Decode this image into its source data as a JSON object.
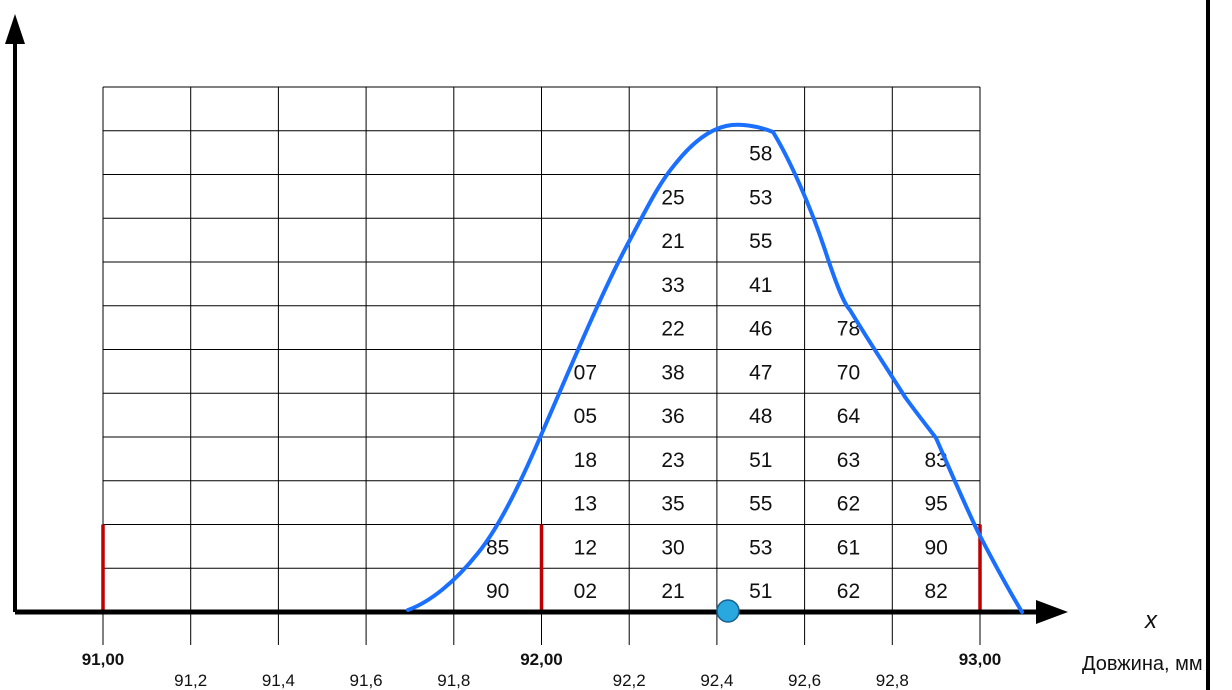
{
  "axis": {
    "x_symbol": "x",
    "caption": "Довжина, мм",
    "major_ticks": [
      "91,00",
      "92,00",
      "93,00"
    ],
    "minor_ticks": [
      "91,2",
      "91,4",
      "91,6",
      "91,8",
      "92,2",
      "92,4",
      "92,6",
      "92,8"
    ]
  },
  "columns": [
    {
      "interval_index": 4,
      "values": [
        "90",
        "85"
      ]
    },
    {
      "interval_index": 5,
      "values": [
        "02",
        "12",
        "13",
        "18",
        "05",
        "07"
      ]
    },
    {
      "interval_index": 6,
      "values": [
        "21",
        "30",
        "35",
        "23",
        "36",
        "38",
        "22",
        "33",
        "21",
        "25"
      ]
    },
    {
      "interval_index": 7,
      "values": [
        "51",
        "53",
        "55",
        "51",
        "48",
        "47",
        "46",
        "41",
        "55",
        "53",
        "58"
      ]
    },
    {
      "interval_index": 8,
      "values": [
        "62",
        "61",
        "62",
        "63",
        "64",
        "70",
        "78"
      ]
    },
    {
      "interval_index": 9,
      "values": [
        "82",
        "90",
        "95",
        "83"
      ]
    }
  ],
  "grid": {
    "columns": 10,
    "rows": 12
  },
  "colors": {
    "curve": "#1a6fff",
    "limit_lines": "#c00000",
    "mean_marker": "#29a8e0",
    "axis": "#000000",
    "grid": "#000000"
  },
  "mean_marker_value": 92.43
}
